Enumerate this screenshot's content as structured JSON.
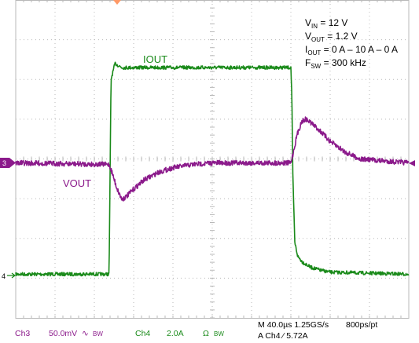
{
  "chart_data": {
    "type": "line",
    "annotations": {
      "vin": {
        "main": "V",
        "sub": "IN",
        "rest": " = 12 V"
      },
      "vout": {
        "main": "V",
        "sub": "OUT",
        "rest": " = 1.2 V"
      },
      "iout": {
        "main": "I",
        "sub": "OUT",
        "rest": " = 0 A – 10 A – 0 A"
      },
      "fsw": {
        "main": "F",
        "sub": "SW",
        "rest": " = 300 kHz"
      }
    },
    "trace_labels": {
      "iout": "IOUT",
      "vout": "VOUT"
    },
    "channel_markers": {
      "ch3": "3",
      "ch4": "4"
    },
    "divisions": {
      "x": 10,
      "y": 8
    },
    "time_per_div_us": 40.0,
    "x_range_us": [
      0,
      400
    ],
    "series": [
      {
        "name": "IOUT",
        "unit": "A",
        "scale_per_div": 2.0,
        "color": "#1a8a1a",
        "step_up_us": 96,
        "step_down_us": 280,
        "x": [
          0,
          95,
          97,
          101,
          108,
          280,
          281,
          282,
          284,
          287,
          292,
          300,
          310,
          320,
          400
        ],
        "values": [
          0,
          0,
          9.8,
          10.6,
          10.4,
          10.4,
          9.0,
          5.0,
          1.6,
          0.9,
          0.6,
          0.35,
          0.2,
          0.1,
          0.0
        ]
      },
      {
        "name": "VOUT",
        "unit": "mV",
        "scale_per_div": 50.0,
        "coupling": "AC",
        "color": "#8b1a8b",
        "x": [
          0,
          95,
          98,
          103,
          108,
          113,
          120,
          130,
          145,
          160,
          180,
          200,
          280,
          283,
          286,
          291,
          295,
          300,
          310,
          320,
          335,
          350,
          400
        ],
        "values": [
          0,
          -2,
          -12,
          -32,
          -46,
          -42,
          -33,
          -22,
          -12,
          -6,
          -2,
          0,
          0,
          16,
          34,
          52,
          55,
          51,
          40,
          27,
          14,
          5,
          0
        ]
      }
    ],
    "footer": {
      "ch3_label": "Ch3",
      "ch3_scale": "50.0mV",
      "ch3_icon": "∿",
      "ch3_bw": "BW",
      "ch4_label": "Ch4",
      "ch4_scale": "2.0A",
      "ch4_icon": "Ω",
      "ch4_bw": "BW",
      "timebase": "M 40.0µs  1.25GS/s",
      "points": "800ps/pt",
      "trigger": "A  Ch4  ⁄  5.72A"
    },
    "colors": {
      "grid": "#b8b8b8",
      "iout": "#1a8a1a",
      "vout": "#8b1a8b",
      "trigger_marker": "#ff9966"
    }
  }
}
